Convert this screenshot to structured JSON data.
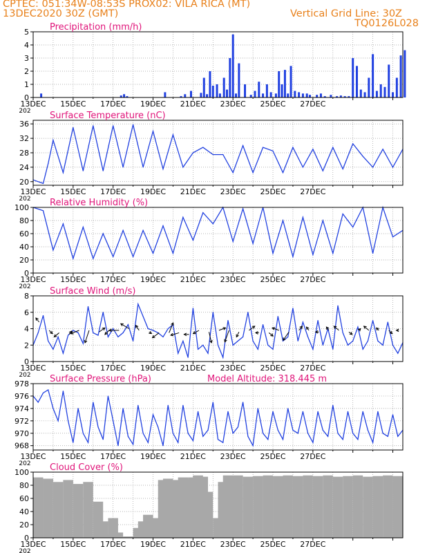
{
  "header": {
    "line1": "CPTEC:   051:34W-08:53S   PROX02: VILA RICA (MT)",
    "line2": "13DEC2020 30Z (GMT)",
    "grid_note": "Vertical Grid Line: 30Z",
    "code": "TQ0126L028"
  },
  "colors": {
    "header": "#e8801a",
    "title": "#e0157a",
    "line": "#2040e0",
    "cloud": "#a8a8a8",
    "arrow": "#000000"
  },
  "x_tick_labels": [
    "13DEC",
    "15DEC",
    "17DEC",
    "19DEC",
    "21DEC",
    "23DEC",
    "25DEC",
    "27DEC"
  ],
  "x_year_label": "202",
  "chart_data": [
    {
      "type": "bar",
      "title": "Precipitation  (mm/h)",
      "ylim": [
        0,
        5
      ],
      "yticks": [
        "0",
        "1",
        "2",
        "3",
        "4",
        "5"
      ],
      "grid": true,
      "x": [
        0.4,
        4.4,
        4.55,
        4.7,
        6.6,
        7.4,
        7.6,
        7.9,
        8.4,
        8.55,
        8.7,
        8.85,
        9.0,
        9.2,
        9.35,
        9.55,
        9.7,
        9.85,
        10.0,
        10.15,
        10.3,
        10.6,
        10.9,
        11.1,
        11.3,
        11.5,
        11.7,
        11.9,
        12.15,
        12.3,
        12.45,
        12.6,
        12.75,
        12.9,
        13.1,
        13.3,
        13.5,
        13.7,
        13.85,
        14.2,
        14.4,
        14.6,
        14.9,
        15.2,
        15.4,
        15.6,
        15.8,
        16.0,
        16.2,
        16.4,
        16.6,
        16.8,
        17.0,
        17.2,
        17.4,
        17.6,
        17.8,
        18.0,
        18.2,
        18.4,
        18.6
      ],
      "values": [
        0.3,
        0.15,
        0.25,
        0.1,
        0.4,
        0.1,
        0.25,
        0.5,
        0.35,
        1.5,
        0.25,
        2.0,
        0.9,
        1.0,
        0.3,
        1.5,
        0.6,
        3.0,
        4.8,
        0.3,
        2.6,
        1.0,
        0.2,
        0.5,
        1.2,
        0.3,
        1.0,
        0.4,
        0.3,
        2.0,
        1.0,
        2.1,
        0.3,
        2.4,
        0.5,
        0.4,
        0.3,
        0.3,
        0.2,
        0.2,
        0.3,
        0.1,
        0.2,
        0.1,
        0.15,
        0.1,
        0.1,
        3.0,
        2.4,
        0.6,
        0.4,
        1.5,
        3.3,
        0.5,
        1.0,
        0.8,
        2.5,
        0.4,
        1.5,
        3.2,
        3.6
      ]
    },
    {
      "type": "line",
      "title": "Surface Temperature  (nC)",
      "ylim": [
        19,
        37
      ],
      "yticks": [
        "20",
        "24",
        "28",
        "32",
        "36"
      ],
      "grid": true,
      "x": [
        0.0,
        0.5,
        0.75,
        1.0,
        1.5,
        2.0,
        2.5,
        3.0,
        3.5,
        4.0,
        4.5,
        5.0,
        5.5,
        6.0,
        6.5,
        7.0,
        7.5,
        8.0,
        8.5,
        9.0,
        9.5,
        10.0,
        10.5,
        11.0,
        11.5,
        12.0,
        12.5,
        13.0,
        13.5,
        14.0,
        14.5,
        15.0,
        15.5,
        16.0,
        16.5,
        17.0,
        17.5,
        18.0,
        18.5
      ],
      "values": [
        20.5,
        19.5,
        25.0,
        31.5,
        22.5,
        35.0,
        23.0,
        35.5,
        23.0,
        35.5,
        24.0,
        35.8,
        24.0,
        34.0,
        23.5,
        33.0,
        24.0,
        28.0,
        29.5,
        27.5,
        27.5,
        22.5,
        30.0,
        22.5,
        29.5,
        28.5,
        22.5,
        29.5,
        24.0,
        29.0,
        23.0,
        29.5,
        23.5,
        30.5,
        27.0,
        24.0,
        29.0,
        24.0,
        29.0
      ]
    },
    {
      "type": "line",
      "title": "Relative Humidity  (%)",
      "ylim": [
        0,
        100
      ],
      "yticks": [
        "0",
        "20",
        "40",
        "60",
        "80",
        "100"
      ],
      "grid": true,
      "x": [
        0.0,
        0.5,
        1.0,
        1.5,
        2.0,
        2.5,
        3.0,
        3.5,
        4.0,
        4.5,
        5.0,
        5.5,
        6.0,
        6.5,
        7.0,
        7.5,
        8.0,
        8.5,
        9.0,
        9.5,
        10.0,
        10.5,
        11.0,
        11.5,
        12.0,
        12.5,
        13.0,
        13.5,
        14.0,
        14.5,
        15.0,
        15.5,
        16.0,
        16.5,
        17.0,
        17.5,
        18.0,
        18.5
      ],
      "values": [
        100,
        95,
        35,
        75,
        22,
        70,
        22,
        60,
        25,
        65,
        25,
        65,
        30,
        72,
        30,
        85,
        50,
        92,
        75,
        100,
        48,
        98,
        45,
        100,
        30,
        80,
        25,
        85,
        28,
        80,
        30,
        90,
        70,
        100,
        30,
        100,
        55,
        65
      ]
    },
    {
      "type": "line",
      "title": "Surface Wind  (m/s)",
      "ylim": [
        0,
        8
      ],
      "yticks": [
        "0",
        "2",
        "4",
        "6",
        "8"
      ],
      "grid": true,
      "x": [
        0.0,
        0.25,
        0.5,
        0.75,
        1.0,
        1.25,
        1.5,
        1.75,
        2.0,
        2.25,
        2.5,
        2.75,
        3.0,
        3.25,
        3.5,
        3.75,
        4.0,
        4.25,
        4.5,
        4.75,
        5.0,
        5.25,
        5.5,
        5.75,
        6.0,
        6.25,
        6.5,
        6.75,
        7.0,
        7.25,
        7.5,
        7.75,
        8.0,
        8.25,
        8.5,
        8.75,
        9.0,
        9.25,
        9.5,
        9.75,
        10.0,
        10.25,
        10.5,
        10.75,
        11.0,
        11.25,
        11.5,
        11.75,
        12.0,
        12.25,
        12.5,
        12.75,
        13.0,
        13.25,
        13.5,
        13.75,
        14.0,
        14.25,
        14.5,
        14.75,
        15.0,
        15.25,
        15.5,
        15.75,
        16.0,
        16.25,
        16.5,
        16.75,
        17.0,
        17.25,
        17.5,
        17.75,
        18.0,
        18.25,
        18.5
      ],
      "values": [
        2.0,
        3.5,
        5.6,
        2.5,
        1.5,
        3.0,
        1.0,
        3.2,
        3.8,
        3.5,
        2.2,
        6.7,
        3.5,
        3.2,
        6.0,
        3.0,
        4.0,
        3.0,
        3.5,
        4.5,
        2.5,
        7.0,
        5.5,
        4.0,
        3.8,
        3.5,
        3.0,
        4.0,
        4.5,
        1.0,
        2.5,
        0.5,
        6.5,
        1.5,
        2.0,
        1.0,
        6.0,
        2.0,
        0.5,
        5.0,
        2.0,
        2.5,
        3.0,
        6.0,
        2.5,
        1.5,
        4.5,
        2.0,
        1.5,
        5.5,
        2.5,
        3.0,
        6.5,
        2.5,
        4.8,
        3.0,
        1.5,
        5.0,
        2.0,
        4.0,
        1.5,
        6.8,
        3.5,
        2.0,
        2.5,
        4.2,
        1.5,
        2.5,
        5.0,
        2.5,
        2.0,
        4.8,
        2.0,
        1.0,
        2.3
      ]
    },
    {
      "type": "line",
      "title": "Surface Pressure  (hPa)",
      "annotation": "Model Altitude: 318.445  m",
      "ylim": [
        967.3,
        978
      ],
      "yticks": [
        "968",
        "970",
        "972",
        "974",
        "976",
        "978"
      ],
      "grid": true,
      "x": [
        0.0,
        0.25,
        0.5,
        0.75,
        1.0,
        1.25,
        1.5,
        1.75,
        2.0,
        2.25,
        2.5,
        2.75,
        3.0,
        3.25,
        3.5,
        3.75,
        4.0,
        4.25,
        4.5,
        4.75,
        5.0,
        5.25,
        5.5,
        5.75,
        6.0,
        6.25,
        6.5,
        6.75,
        7.0,
        7.25,
        7.5,
        7.75,
        8.0,
        8.25,
        8.5,
        8.75,
        9.0,
        9.25,
        9.5,
        9.75,
        10.0,
        10.25,
        10.5,
        10.75,
        11.0,
        11.25,
        11.5,
        11.75,
        12.0,
        12.25,
        12.5,
        12.75,
        13.0,
        13.25,
        13.5,
        13.75,
        14.0,
        14.25,
        14.5,
        14.75,
        15.0,
        15.25,
        15.5,
        15.75,
        16.0,
        16.25,
        16.5,
        16.75,
        17.0,
        17.25,
        17.5,
        17.75,
        18.0,
        18.25,
        18.5
      ],
      "values": [
        976.0,
        975.0,
        976.5,
        977.0,
        974.0,
        972.0,
        976.8,
        972.0,
        968.5,
        974.0,
        970.0,
        968.5,
        975.0,
        971.0,
        969.0,
        976.0,
        972.0,
        968.0,
        974.0,
        969.5,
        968.2,
        974.5,
        970.0,
        968.5,
        973.0,
        971.0,
        968.0,
        974.5,
        970.0,
        968.5,
        974.5,
        970.0,
        968.8,
        973.5,
        969.5,
        970.5,
        975.0,
        969.0,
        968.5,
        973.5,
        970.0,
        971.0,
        975.0,
        969.5,
        968.0,
        974.0,
        970.0,
        969.0,
        973.5,
        970.5,
        969.0,
        974.0,
        970.5,
        970.0,
        973.5,
        970.0,
        968.5,
        973.5,
        970.5,
        969.5,
        974.5,
        970.0,
        969.0,
        973.5,
        970.0,
        969.0,
        973.5,
        970.5,
        968.5,
        973.5,
        970.0,
        969.5,
        973.0,
        969.5,
        970.5
      ]
    },
    {
      "type": "bar",
      "title": "Cloud Cover  (%)",
      "ylim": [
        0,
        100
      ],
      "yticks": [
        "0",
        "20",
        "40",
        "60",
        "80",
        "100"
      ],
      "grid": true,
      "x": [
        0.0,
        0.5,
        1.0,
        1.5,
        2.0,
        2.5,
        3.0,
        3.25,
        3.5,
        3.75,
        4.0,
        4.25,
        4.5,
        4.75,
        5.0,
        5.25,
        5.5,
        5.75,
        6.0,
        6.25,
        6.5,
        6.75,
        7.0,
        7.25,
        7.5,
        7.75,
        8.0,
        8.25,
        8.5,
        8.75,
        9.0,
        9.25,
        9.5,
        9.75,
        10.0,
        10.5,
        11.0,
        11.5,
        12.0,
        12.5,
        13.0,
        13.5,
        14.0,
        14.5,
        15.0,
        15.5,
        16.0,
        16.5,
        17.0,
        17.5,
        18.0,
        18.5
      ],
      "values": [
        92,
        90,
        85,
        88,
        82,
        85,
        55,
        25,
        5,
        30,
        8,
        0,
        2,
        0,
        15,
        25,
        35,
        20,
        30,
        88,
        90,
        85,
        88,
        92,
        90,
        92,
        95,
        93,
        70,
        0,
        30,
        85,
        95,
        94,
        95,
        93,
        94,
        95,
        94,
        95,
        94,
        95,
        94,
        95,
        93,
        94,
        95,
        93,
        94,
        95,
        94,
        95
      ]
    }
  ],
  "wind_vectors": {
    "x": [
      0.3,
      0.8,
      1.3,
      1.8,
      2.3,
      2.8,
      3.3,
      3.8,
      4.3,
      4.8,
      5.3,
      5.8,
      6.3,
      6.8,
      7.3,
      7.8,
      8.3,
      8.8,
      9.3,
      9.8,
      10.3,
      10.8,
      11.3,
      11.8,
      12.3,
      12.8,
      13.3,
      13.8,
      14.3,
      14.8,
      15.3,
      15.8,
      16.3,
      16.8,
      17.3,
      17.8,
      18.3
    ],
    "level": [
      4.8,
      3.8,
      3.5,
      3.3,
      3.8,
      3.8,
      3.6,
      3.8,
      3.8,
      4.0,
      3.8,
      3.6,
      3.5,
      3.5,
      3.5,
      3.3,
      3.8,
      3.6,
      3.8,
      3.8,
      3.6,
      3.8,
      3.5,
      3.5,
      3.8,
      3.6,
      3.8,
      3.8,
      3.6,
      3.8,
      3.8,
      3.6,
      3.8,
      3.8,
      3.8,
      3.8,
      3.8
    ],
    "u": [
      -0.4,
      0.4,
      -0.6,
      0.3,
      -1.0,
      -0.5,
      0.7,
      -0.5,
      -1.2,
      -1.0,
      -0.4,
      0.3,
      -0.8,
      0.5,
      -1.0,
      -0.6,
      -0.7,
      0.3,
      0.8,
      -0.5,
      -0.3,
      0.7,
      -0.4,
      0.5,
      -0.8,
      -0.7,
      0.4,
      -0.3,
      -0.4,
      -0.3,
      -0.6,
      0.4,
      0.2,
      -0.6,
      -0.3,
      0.4,
      -0.3
    ],
    "v": [
      0.5,
      -0.4,
      -0.5,
      0.4,
      -0.4,
      -1.5,
      0.5,
      -0.5,
      0.0,
      0.6,
      0.6,
      -0.2,
      -0.6,
      1.2,
      -0.3,
      0.0,
      -0.4,
      -1.3,
      0.3,
      -1.4,
      -0.6,
      0.5,
      0.0,
      -0.4,
      0.3,
      -1.0,
      0.5,
      0.4,
      0.0,
      0.4,
      0.5,
      -0.3,
      0.2,
      0.5,
      0.3,
      -0.4,
      0.0
    ]
  }
}
